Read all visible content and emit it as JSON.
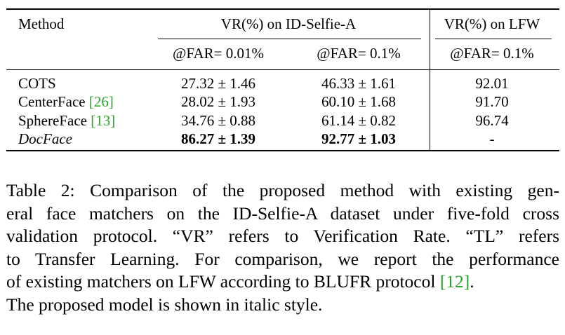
{
  "table": {
    "headers": {
      "method": "Method",
      "group1": "VR(%) on ID-Selfie-A",
      "group2": "VR(%) on LFW",
      "sub1": "@FAR= 0.01%",
      "sub2": "@FAR= 0.1%",
      "sub3": "@FAR= 0.1%"
    },
    "rows": [
      {
        "method": "COTS",
        "cite": "",
        "v1": "27.32 ± 1.46",
        "v2": "46.33 ± 1.61",
        "v3": "92.01"
      },
      {
        "method": "CenterFace ",
        "cite": "[26]",
        "v1": "28.02 ± 1.93",
        "v2": "60.10 ± 1.68",
        "v3": "91.70"
      },
      {
        "method": "SphereFace ",
        "cite": "[13]",
        "v1": "34.76 ± 0.88",
        "v2": "61.14 ± 0.82",
        "v3": "96.74"
      },
      {
        "method": "DocFace",
        "cite": "",
        "v1": "86.27 ± 1.39",
        "v2": "92.77 ± 1.03",
        "v3": "-"
      }
    ]
  },
  "caption": {
    "line1": "Table 2: Comparison of the proposed method with existing gen-",
    "line2": "eral face matchers on the ID-Selfie-A dataset under five-fold cross",
    "line3": "validation protocol. “VR” refers to Verification Rate. “TL” refers",
    "line4": "to Transfer Learning. For comparison, we report the performance",
    "line5a": "of existing matchers on LFW according to BLUFR protocol ",
    "line5cite": "[12]",
    "line5b": ".",
    "line6": "The proposed model is shown in italic style."
  }
}
